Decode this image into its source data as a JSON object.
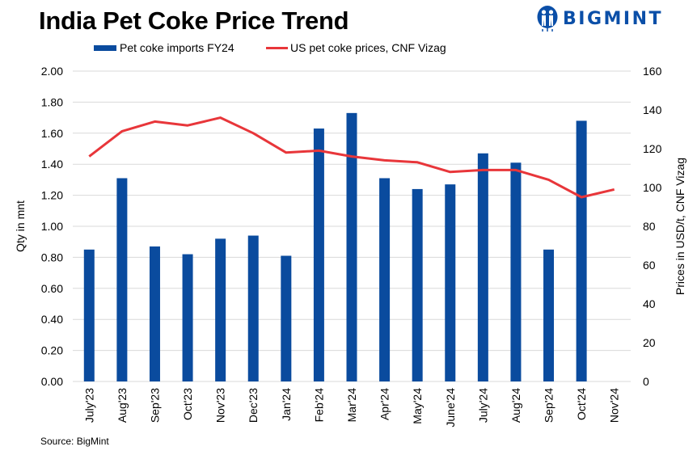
{
  "header": {
    "title": "India Pet Coke Price Trend",
    "logo_text": "BIGMINT"
  },
  "footer": {
    "source": "Source: BigMint"
  },
  "colors": {
    "bar": "#0a4b9e",
    "line": "#e8363a",
    "grid": "#d9d9d9",
    "logo": "#0b4fa8"
  },
  "chart_data": {
    "type": "bar",
    "title": "India Pet Coke Price Trend",
    "categories": [
      "July'23",
      "Aug'23",
      "Sep'23",
      "Oct'23",
      "Nov'23",
      "Dec'23",
      "Jan'24",
      "Feb'24",
      "Mar'24",
      "Apr'24",
      "May'24",
      "June'24",
      "July'24",
      "Aug'24",
      "Sep'24",
      "Oct'24",
      "Nov'24"
    ],
    "series": [
      {
        "name": "Pet coke imports FY24",
        "type": "bar",
        "axis": "left",
        "values": [
          0.85,
          1.31,
          0.87,
          0.82,
          0.92,
          0.94,
          0.81,
          1.63,
          1.73,
          1.31,
          1.24,
          1.27,
          1.47,
          1.41,
          0.85,
          1.68,
          null
        ]
      },
      {
        "name": "US pet coke prices, CNF Vizag",
        "type": "line",
        "axis": "right",
        "values": [
          116,
          129,
          134,
          132,
          136,
          128,
          118,
          119,
          116,
          114,
          113,
          108,
          109,
          109,
          104,
          95,
          99
        ]
      }
    ],
    "ylabel": "Qty in mnt",
    "y2label": "Prices in USD/t, CNF Vizag",
    "xlabel": "",
    "ylim": [
      0,
      2.0
    ],
    "y2lim": [
      0,
      160
    ],
    "yticks": [
      "0.00",
      "0.20",
      "0.40",
      "0.60",
      "0.80",
      "1.00",
      "1.20",
      "1.40",
      "1.60",
      "1.80",
      "2.00"
    ],
    "y2ticks": [
      "0",
      "20",
      "40",
      "60",
      "80",
      "100",
      "120",
      "140",
      "160"
    ],
    "grid": true,
    "legend": "top-center"
  }
}
